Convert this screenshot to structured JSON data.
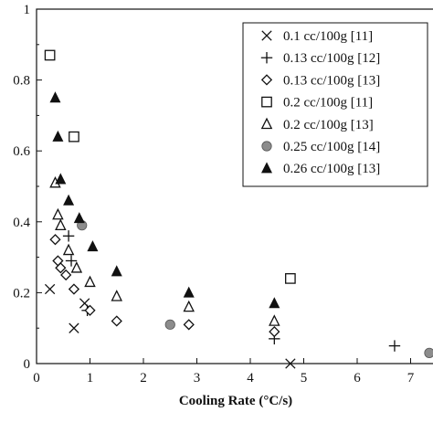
{
  "chart_data": {
    "type": "scatter",
    "title": "",
    "xlabel": "Cooling Rate (°C/s)",
    "ylabel": "",
    "xlim": [
      0,
      8
    ],
    "ylim": [
      0,
      1
    ],
    "x_ticks": [
      "0",
      "1",
      "2",
      "3",
      "4",
      "5",
      "6",
      "7"
    ],
    "y_ticks": [
      "0",
      "0.2",
      "0.4",
      "0.6",
      "0.8",
      "1"
    ],
    "grid": false,
    "legend_position": "top-right",
    "series": [
      {
        "name": "0.1 cc/100g [11]",
        "marker": "x",
        "color": "#111111",
        "points": [
          [
            0.25,
            0.21
          ],
          [
            0.7,
            0.1
          ],
          [
            0.9,
            0.17
          ],
          [
            4.75,
            0.0
          ]
        ]
      },
      {
        "name": "0.13 cc/100g [12]",
        "marker": "plus",
        "color": "#111111",
        "points": [
          [
            0.6,
            0.36
          ],
          [
            0.65,
            0.29
          ],
          [
            0.95,
            0.15
          ],
          [
            4.45,
            0.07
          ],
          [
            6.7,
            0.05
          ]
        ]
      },
      {
        "name": "0.13 cc/100g [13]",
        "marker": "diamond-open",
        "color": "#111111",
        "points": [
          [
            0.35,
            0.35
          ],
          [
            0.4,
            0.29
          ],
          [
            0.45,
            0.27
          ],
          [
            0.55,
            0.25
          ],
          [
            0.7,
            0.21
          ],
          [
            1.0,
            0.15
          ],
          [
            1.5,
            0.12
          ],
          [
            2.85,
            0.11
          ],
          [
            4.45,
            0.09
          ]
        ]
      },
      {
        "name": "0.2 cc/100g [11]",
        "marker": "square-open",
        "color": "#111111",
        "points": [
          [
            0.25,
            0.87
          ],
          [
            0.7,
            0.64
          ],
          [
            4.75,
            0.24
          ]
        ]
      },
      {
        "name": "0.2 cc/100g [13]",
        "marker": "triangle-open",
        "color": "#111111",
        "points": [
          [
            0.35,
            0.51
          ],
          [
            0.4,
            0.42
          ],
          [
            0.45,
            0.39
          ],
          [
            0.6,
            0.32
          ],
          [
            0.75,
            0.27
          ],
          [
            1.0,
            0.23
          ],
          [
            1.5,
            0.19
          ],
          [
            2.85,
            0.16
          ],
          [
            4.45,
            0.12
          ]
        ]
      },
      {
        "name": "0.25 cc/100g [14]",
        "marker": "circle-filled",
        "color": "#8c8c8c",
        "points": [
          [
            0.85,
            0.39
          ],
          [
            2.5,
            0.11
          ],
          [
            7.35,
            0.03
          ]
        ]
      },
      {
        "name": "0.26 cc/100g [13]",
        "marker": "triangle-filled",
        "color": "#111111",
        "points": [
          [
            0.35,
            0.75
          ],
          [
            0.4,
            0.64
          ],
          [
            0.45,
            0.52
          ],
          [
            0.6,
            0.46
          ],
          [
            0.8,
            0.41
          ],
          [
            1.05,
            0.33
          ],
          [
            1.5,
            0.26
          ],
          [
            2.85,
            0.2
          ],
          [
            4.45,
            0.17
          ]
        ]
      }
    ]
  }
}
